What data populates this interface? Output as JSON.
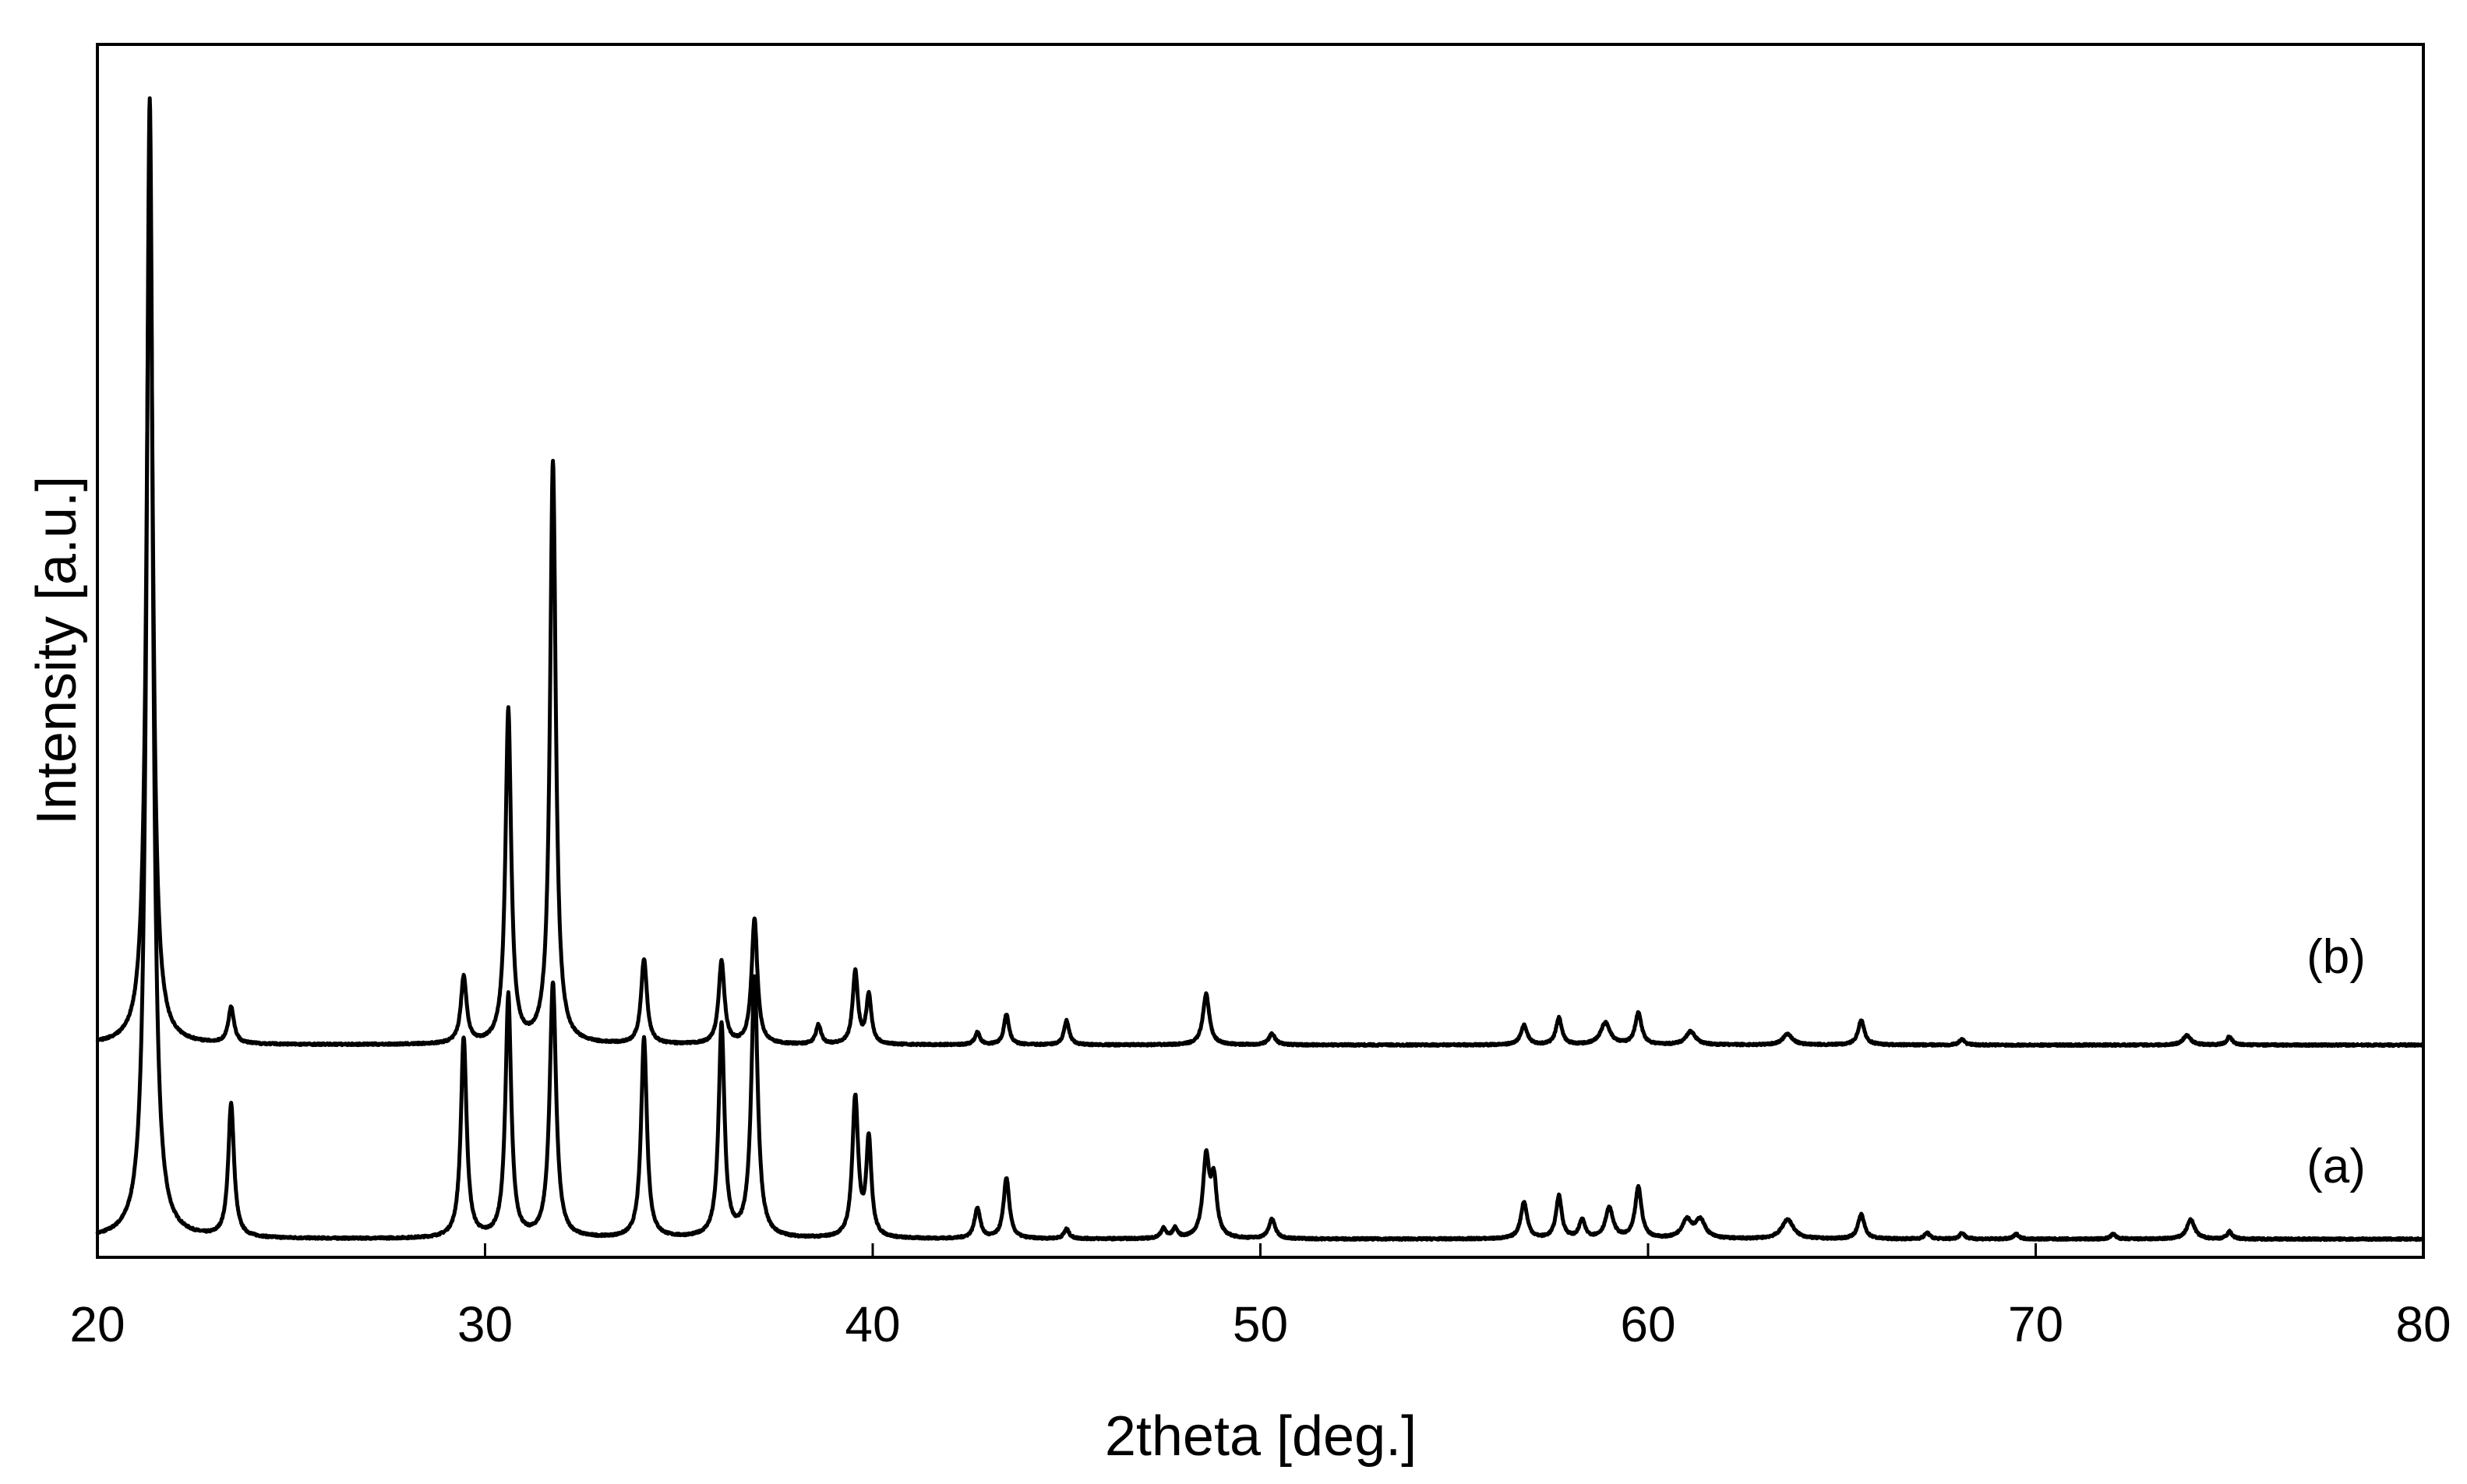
{
  "chart_data": {
    "type": "line",
    "title": "",
    "xlabel": "2theta [deg.]",
    "ylabel": "Intensity [a.u.]",
    "xlim": [
      20,
      80
    ],
    "ylim": [
      0,
      100
    ],
    "x_ticks": [
      20,
      30,
      40,
      50,
      60,
      70,
      80
    ],
    "y_ticks_shown": false,
    "grid": false,
    "legend": "none; series labelled inline at right",
    "series": [
      {
        "name": "(a)",
        "color": "#000000",
        "baseline": 1.5,
        "noise": 0.15,
        "peaks": [
          {
            "x": 21.35,
            "h": 94,
            "w": 0.1
          },
          {
            "x": 23.45,
            "h": 11,
            "w": 0.09
          },
          {
            "x": 29.45,
            "h": 16.5,
            "w": 0.09
          },
          {
            "x": 30.6,
            "h": 20,
            "w": 0.09
          },
          {
            "x": 31.75,
            "h": 21,
            "w": 0.1
          },
          {
            "x": 34.1,
            "h": 16.5,
            "w": 0.09
          },
          {
            "x": 36.1,
            "h": 17.5,
            "w": 0.09
          },
          {
            "x": 36.95,
            "h": 21.5,
            "w": 0.1
          },
          {
            "x": 39.55,
            "h": 11.5,
            "w": 0.09
          },
          {
            "x": 39.9,
            "h": 8,
            "w": 0.08
          },
          {
            "x": 42.7,
            "h": 2.5,
            "w": 0.09
          },
          {
            "x": 43.45,
            "h": 5,
            "w": 0.09
          },
          {
            "x": 45.0,
            "h": 0.8,
            "w": 0.08
          },
          {
            "x": 47.5,
            "h": 0.8,
            "w": 0.08
          },
          {
            "x": 47.8,
            "h": 0.8,
            "w": 0.08
          },
          {
            "x": 48.6,
            "h": 6.5,
            "w": 0.1
          },
          {
            "x": 48.8,
            "h": 4.5,
            "w": 0.09
          },
          {
            "x": 50.3,
            "h": 1.6,
            "w": 0.1
          },
          {
            "x": 56.8,
            "h": 3.0,
            "w": 0.1
          },
          {
            "x": 57.7,
            "h": 3.5,
            "w": 0.09
          },
          {
            "x": 58.3,
            "h": 1.5,
            "w": 0.09
          },
          {
            "x": 59.0,
            "h": 2.5,
            "w": 0.12
          },
          {
            "x": 59.75,
            "h": 4.2,
            "w": 0.1
          },
          {
            "x": 61.0,
            "h": 1.5,
            "w": 0.15
          },
          {
            "x": 61.35,
            "h": 1.5,
            "w": 0.15
          },
          {
            "x": 63.6,
            "h": 1.6,
            "w": 0.18
          },
          {
            "x": 65.5,
            "h": 2.0,
            "w": 0.1
          },
          {
            "x": 67.2,
            "h": 0.5,
            "w": 0.08
          },
          {
            "x": 68.1,
            "h": 0.5,
            "w": 0.08
          },
          {
            "x": 69.5,
            "h": 0.4,
            "w": 0.08
          },
          {
            "x": 72.0,
            "h": 0.4,
            "w": 0.08
          },
          {
            "x": 74.0,
            "h": 1.6,
            "w": 0.12
          },
          {
            "x": 75.0,
            "h": 0.6,
            "w": 0.08
          }
        ]
      },
      {
        "name": "(b)",
        "color": "#000000",
        "baseline": 17.5,
        "noise": 0.15,
        "peaks": [
          {
            "x": 21.35,
            "h": 72,
            "w": 0.1
          },
          {
            "x": 23.45,
            "h": 3.0,
            "w": 0.09
          },
          {
            "x": 29.45,
            "h": 5.5,
            "w": 0.09
          },
          {
            "x": 30.6,
            "h": 27.5,
            "w": 0.09
          },
          {
            "x": 31.75,
            "h": 48,
            "w": 0.09
          },
          {
            "x": 34.1,
            "h": 7.0,
            "w": 0.09
          },
          {
            "x": 36.1,
            "h": 6.8,
            "w": 0.09
          },
          {
            "x": 36.95,
            "h": 10.3,
            "w": 0.09
          },
          {
            "x": 38.6,
            "h": 1.6,
            "w": 0.08
          },
          {
            "x": 39.55,
            "h": 6.0,
            "w": 0.08
          },
          {
            "x": 39.9,
            "h": 4.0,
            "w": 0.08
          },
          {
            "x": 42.7,
            "h": 1.0,
            "w": 0.08
          },
          {
            "x": 43.45,
            "h": 2.5,
            "w": 0.08
          },
          {
            "x": 45.0,
            "h": 2.0,
            "w": 0.08
          },
          {
            "x": 48.6,
            "h": 4.2,
            "w": 0.1
          },
          {
            "x": 50.3,
            "h": 0.9,
            "w": 0.1
          },
          {
            "x": 56.8,
            "h": 1.6,
            "w": 0.1
          },
          {
            "x": 57.7,
            "h": 2.2,
            "w": 0.09
          },
          {
            "x": 58.9,
            "h": 1.8,
            "w": 0.15
          },
          {
            "x": 59.75,
            "h": 2.6,
            "w": 0.1
          },
          {
            "x": 61.1,
            "h": 1.1,
            "w": 0.15
          },
          {
            "x": 63.6,
            "h": 0.9,
            "w": 0.15
          },
          {
            "x": 65.5,
            "h": 2.0,
            "w": 0.1
          },
          {
            "x": 68.1,
            "h": 0.5,
            "w": 0.08
          },
          {
            "x": 73.9,
            "h": 0.8,
            "w": 0.12
          },
          {
            "x": 75.0,
            "h": 0.7,
            "w": 0.08
          }
        ]
      }
    ]
  }
}
